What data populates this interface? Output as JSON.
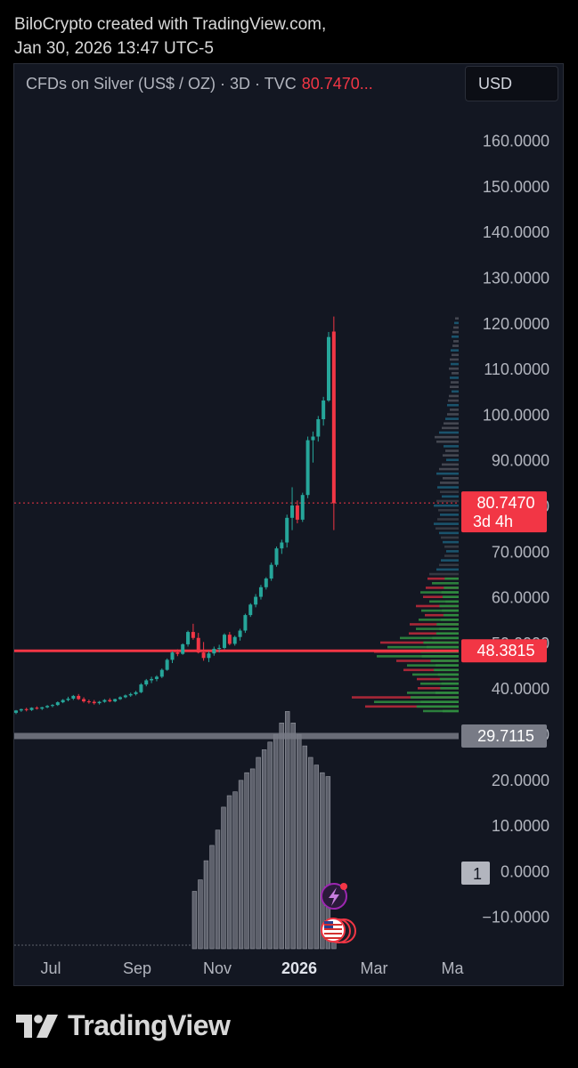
{
  "header": {
    "line1": "BiloCrypto created with TradingView.com,",
    "line2": "Jan 30, 2026 13:47 UTC-5"
  },
  "symbol": {
    "name": "CFDs on Silver (US$ / OZ) · 3D · TVC",
    "price": "80.7470..."
  },
  "currency_button": "USD",
  "brand": "TradingView",
  "colors": {
    "up": "#26a69a",
    "down": "#f23645",
    "volume": "#787b86",
    "background": "#131722"
  },
  "chart_data": {
    "type": "candlestick",
    "price_axis": {
      "ticks": [
        "160.0000",
        "150.0000",
        "140.0000",
        "130.0000",
        "120.0000",
        "110.0000",
        "100.0000",
        "90.0000",
        "80.0000",
        "70.0000",
        "60.0000",
        "50.0000",
        "40.0000",
        "30.0000",
        "20.0000",
        "10.0000",
        "0.0000",
        "−10.0000"
      ]
    },
    "x_axis": {
      "ticks": [
        "Jul",
        "Sep",
        "Nov",
        "2026",
        "Mar",
        "Ma"
      ],
      "bold": [
        "2026"
      ]
    },
    "price_labels": [
      {
        "value": 80.747,
        "text": "80.7470",
        "subtext": "3d 4h",
        "color": "#f23645"
      },
      {
        "value": 48.3815,
        "text": "48.3815",
        "color": "#f23645"
      },
      {
        "value": 29.7115,
        "text": "29.7115",
        "color": "#787b86"
      }
    ],
    "current_price": 80.747,
    "horizontal_lines": [
      {
        "value": 48.3815,
        "color": "#f23645"
      },
      {
        "value": 29.7115,
        "color": "#787b86"
      }
    ],
    "oscillator_badge": "1",
    "candles": [
      [
        34.8,
        35.4,
        34.5,
        35.3
      ],
      [
        35.3,
        35.7,
        35.0,
        35.6
      ],
      [
        35.6,
        35.9,
        35.1,
        35.4
      ],
      [
        35.4,
        36.0,
        35.2,
        35.9
      ],
      [
        35.9,
        36.2,
        35.5,
        35.7
      ],
      [
        35.7,
        36.1,
        35.4,
        36.0
      ],
      [
        36.0,
        36.5,
        35.8,
        36.3
      ],
      [
        36.3,
        36.7,
        36.0,
        36.5
      ],
      [
        36.5,
        37.3,
        36.3,
        37.1
      ],
      [
        37.1,
        37.8,
        36.9,
        37.6
      ],
      [
        37.6,
        38.3,
        37.3,
        37.9
      ],
      [
        37.9,
        38.7,
        37.6,
        38.5
      ],
      [
        38.5,
        38.9,
        37.6,
        37.8
      ],
      [
        37.8,
        38.2,
        37.0,
        37.3
      ],
      [
        37.3,
        37.7,
        36.8,
        37.2
      ],
      [
        37.2,
        37.6,
        36.6,
        36.9
      ],
      [
        36.9,
        37.4,
        36.6,
        37.2
      ],
      [
        37.2,
        37.8,
        37.0,
        37.6
      ],
      [
        37.6,
        38.0,
        37.1,
        37.3
      ],
      [
        37.3,
        37.9,
        37.1,
        37.8
      ],
      [
        37.8,
        38.4,
        37.6,
        38.2
      ],
      [
        38.2,
        38.8,
        38.0,
        38.6
      ],
      [
        38.6,
        39.2,
        38.3,
        38.9
      ],
      [
        38.9,
        39.6,
        38.6,
        39.3
      ],
      [
        39.3,
        41.3,
        39.1,
        41.0
      ],
      [
        41.0,
        42.2,
        40.6,
        41.9
      ],
      [
        41.9,
        42.7,
        41.3,
        42.2
      ],
      [
        42.2,
        43.0,
        41.7,
        42.7
      ],
      [
        42.7,
        44.5,
        42.4,
        44.2
      ],
      [
        44.2,
        46.7,
        44.0,
        46.4
      ],
      [
        46.4,
        48.3,
        45.7,
        48.0
      ],
      [
        48.0,
        48.7,
        47.2,
        47.7
      ],
      [
        47.7,
        50.0,
        47.5,
        49.8
      ],
      [
        49.8,
        52.8,
        49.3,
        52.5
      ],
      [
        52.5,
        54.3,
        50.8,
        51.2
      ],
      [
        51.2,
        52.3,
        47.8,
        48.0
      ],
      [
        48.0,
        50.3,
        46.2,
        46.8
      ],
      [
        46.8,
        48.3,
        45.9,
        47.8
      ],
      [
        47.8,
        49.3,
        47.3,
        48.8
      ],
      [
        48.8,
        49.7,
        48.0,
        49.0
      ],
      [
        49.0,
        52.2,
        48.7,
        51.9
      ],
      [
        51.9,
        52.5,
        49.6,
        49.9
      ],
      [
        49.9,
        51.7,
        49.5,
        51.4
      ],
      [
        51.4,
        53.2,
        50.6,
        52.8
      ],
      [
        52.8,
        56.5,
        52.3,
        56.2
      ],
      [
        56.2,
        58.8,
        55.8,
        58.5
      ],
      [
        58.5,
        60.8,
        57.9,
        60.2
      ],
      [
        60.2,
        62.8,
        59.6,
        62.3
      ],
      [
        62.3,
        64.5,
        61.8,
        64.2
      ],
      [
        64.2,
        67.7,
        63.7,
        67.2
      ],
      [
        67.2,
        71.2,
        66.8,
        70.8
      ],
      [
        70.8,
        72.7,
        69.6,
        72.1
      ],
      [
        72.1,
        78.2,
        71.0,
        77.5
      ],
      [
        77.5,
        84.2,
        74.8,
        80.2
      ],
      [
        80.2,
        81.3,
        76.3,
        77.1
      ],
      [
        77.1,
        83.0,
        76.6,
        82.5
      ],
      [
        82.5,
        95.3,
        81.8,
        94.5
      ],
      [
        94.5,
        96.4,
        89.6,
        95.3
      ],
      [
        95.3,
        99.8,
        94.2,
        99.1
      ],
      [
        99.1,
        104.0,
        97.7,
        103.2
      ],
      [
        103.2,
        118.2,
        102.9,
        117.1
      ],
      [
        118.3,
        121.6,
        74.8,
        80.7
      ]
    ],
    "volume": [
      13,
      16,
      21,
      25,
      29,
      35,
      38,
      39,
      42,
      44,
      45,
      48,
      50,
      52,
      54,
      57,
      60,
      57,
      54,
      51,
      48,
      46,
      44,
      43,
      3
    ],
    "volume_profile": [
      [
        121,
        4
      ],
      [
        120,
        5
      ],
      [
        119,
        6
      ],
      [
        118,
        7
      ],
      [
        117,
        8
      ],
      [
        116,
        6
      ],
      [
        115,
        7
      ],
      [
        114,
        9
      ],
      [
        113,
        8
      ],
      [
        112,
        10
      ],
      [
        111,
        9
      ],
      [
        110,
        11
      ],
      [
        109,
        8
      ],
      [
        108,
        10
      ],
      [
        107,
        9
      ],
      [
        106,
        10
      ],
      [
        105,
        8
      ],
      [
        104,
        11
      ],
      [
        103,
        12
      ],
      [
        102,
        13
      ],
      [
        101,
        10
      ],
      [
        100,
        13
      ],
      [
        99,
        15
      ],
      [
        98,
        17
      ],
      [
        97,
        19
      ],
      [
        96,
        22
      ],
      [
        95,
        27
      ],
      [
        94,
        25
      ],
      [
        93,
        17
      ],
      [
        92,
        15
      ],
      [
        91,
        18
      ],
      [
        90,
        14
      ],
      [
        89,
        19
      ],
      [
        88,
        22
      ],
      [
        87,
        25
      ],
      [
        86,
        18
      ],
      [
        85,
        21
      ],
      [
        84,
        24
      ],
      [
        83,
        21
      ],
      [
        82,
        19
      ],
      [
        81,
        25
      ],
      [
        80,
        28
      ],
      [
        79,
        23
      ],
      [
        78,
        21
      ],
      [
        77,
        24
      ],
      [
        76,
        28
      ],
      [
        75,
        26
      ],
      [
        74,
        22
      ],
      [
        73,
        20
      ],
      [
        72,
        18
      ],
      [
        71,
        16
      ],
      [
        70,
        14
      ],
      [
        69,
        16
      ],
      [
        68,
        20
      ],
      [
        67,
        22
      ],
      [
        66,
        25
      ],
      [
        65,
        33
      ],
      [
        64,
        35
      ],
      [
        63,
        30
      ],
      [
        62,
        37
      ],
      [
        61,
        43
      ],
      [
        60,
        40
      ],
      [
        59,
        33
      ],
      [
        58,
        48
      ],
      [
        57,
        42
      ],
      [
        56,
        38
      ],
      [
        55,
        45
      ],
      [
        54,
        55
      ],
      [
        53,
        48
      ],
      [
        52,
        56
      ],
      [
        51,
        66
      ],
      [
        50,
        88
      ],
      [
        49,
        80
      ],
      [
        48,
        95
      ],
      [
        47,
        92
      ],
      [
        46,
        70
      ],
      [
        45,
        58
      ],
      [
        44,
        62
      ],
      [
        43,
        52
      ],
      [
        42,
        47
      ],
      [
        41,
        43
      ],
      [
        40,
        46
      ],
      [
        39,
        58
      ],
      [
        38,
        120
      ],
      [
        37,
        95
      ],
      [
        36,
        105
      ],
      [
        35,
        40
      ]
    ]
  }
}
